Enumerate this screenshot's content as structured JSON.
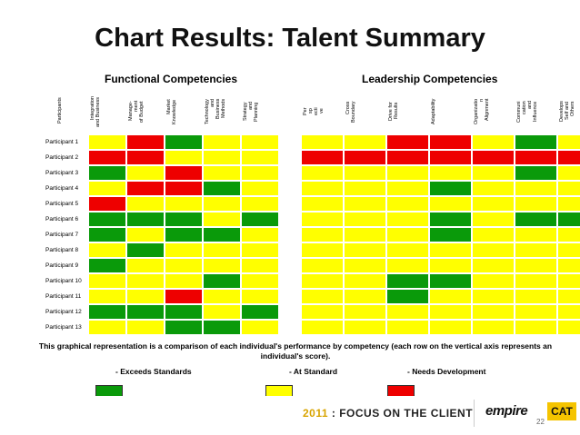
{
  "title": "Chart Results: Talent Summary",
  "groups": {
    "functional": "Functional Competencies",
    "leadership": "Leadership Competencies"
  },
  "participants_header": "Participants",
  "chart_data": {
    "type": "heatmap",
    "title": "Chart Results: Talent Summary",
    "column_groups": [
      {
        "name": "Functional Competencies",
        "columns": [
          0,
          1,
          2,
          3,
          4
        ]
      },
      {
        "name": "Leadership Competencies",
        "columns": [
          5,
          6,
          7,
          8,
          9,
          10
        ]
      }
    ],
    "columns": [
      "Integration\nand Business",
      "Manage-\nment\nof Budget",
      "Market\nKnowledge",
      "Technology\nand\nBusiness\nMethods",
      "Strategy\nand\nPlanning",
      "Cross\nBoundary",
      "Drive for\nResults",
      "Adaptability",
      "Organizatio\nn\nAlignment",
      "Communi\ncation\nand\nInfluence",
      "Develops\nSelf and\nOthers"
    ],
    "leadership_partial_header": "Per\nsp\necti\nve",
    "rows": [
      "Participant 1",
      "Participant 2",
      "Participant 3",
      "Participant 4",
      "Participant 5",
      "Participant 6",
      "Participant 7",
      "Participant 8",
      "Participant 9",
      "Participant 10",
      "Participant 11",
      "Participant 12",
      "Participant 13"
    ],
    "functional_values": [
      [
        "A",
        "N",
        "E",
        "A",
        "A"
      ],
      [
        "N",
        "N",
        "A",
        "A",
        "A"
      ],
      [
        "E",
        "A",
        "N",
        "A",
        "A"
      ],
      [
        "A",
        "N",
        "N",
        "E",
        "A"
      ],
      [
        "N",
        "A",
        "A",
        "A",
        "A"
      ],
      [
        "E",
        "E",
        "E",
        "A",
        "E"
      ],
      [
        "E",
        "A",
        "E",
        "E",
        "A"
      ],
      [
        "A",
        "E",
        "A",
        "A",
        "A"
      ],
      [
        "E",
        "A",
        "A",
        "A",
        "A"
      ],
      [
        "A",
        "A",
        "A",
        "E",
        "A"
      ],
      [
        "A",
        "A",
        "N",
        "A",
        "A"
      ],
      [
        "E",
        "E",
        "E",
        "A",
        "E"
      ],
      [
        "A",
        "A",
        "E",
        "E",
        "A"
      ]
    ],
    "leadership_values": [
      [
        "A",
        "A",
        "N",
        "N",
        "A",
        "E",
        "A"
      ],
      [
        "N",
        "N",
        "N",
        "N",
        "N",
        "N",
        "N"
      ],
      [
        "A",
        "A",
        "A",
        "A",
        "A",
        "E",
        "A"
      ],
      [
        "A",
        "A",
        "A",
        "E",
        "A",
        "A",
        "A"
      ],
      [
        "A",
        "A",
        "A",
        "A",
        "A",
        "A",
        "A"
      ],
      [
        "A",
        "A",
        "A",
        "E",
        "A",
        "E",
        "E"
      ],
      [
        "A",
        "A",
        "A",
        "E",
        "A",
        "A",
        "A"
      ],
      [
        "A",
        "A",
        "A",
        "A",
        "A",
        "A",
        "A"
      ],
      [
        "A",
        "A",
        "A",
        "A",
        "A",
        "A",
        "A"
      ],
      [
        "A",
        "A",
        "E",
        "E",
        "A",
        "A",
        "A"
      ],
      [
        "A",
        "A",
        "E",
        "A",
        "A",
        "A",
        "A"
      ],
      [
        "A",
        "A",
        "A",
        "A",
        "A",
        "A",
        "A"
      ],
      [
        "A",
        "A",
        "A",
        "A",
        "A",
        "A",
        "A"
      ]
    ],
    "legend": [
      {
        "code": "E",
        "label": "- Exceeds Standards",
        "color": "#0a9a0a"
      },
      {
        "code": "A",
        "label": "- At Standard",
        "color": "#ffff00"
      },
      {
        "code": "N",
        "label": "- Needs Development",
        "color": "#ee0000"
      }
    ]
  },
  "note": "This graphical representation is a comparison of each individual's performance by competency (each row on the vertical axis represents an individual's score).",
  "footer": {
    "year": "2011",
    "tagline": " : FOCUS ON THE CLIENT",
    "logo_empire": "empire",
    "logo_cat": "CAT",
    "page_number": "22"
  }
}
